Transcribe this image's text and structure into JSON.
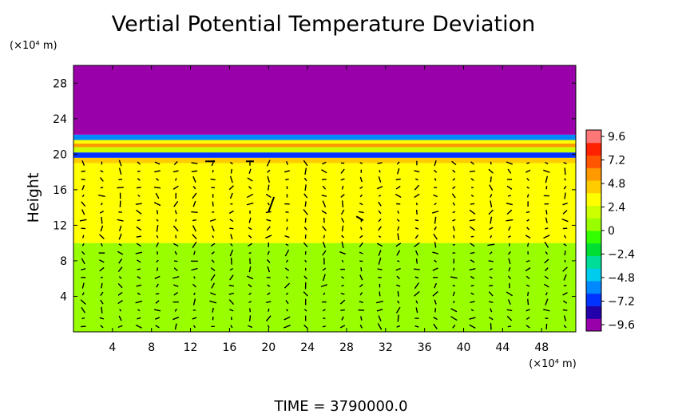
{
  "chart_data": {
    "type": "heatmap",
    "title": "Vertial Potential Temperature Deviation",
    "ylabel": "Height",
    "xlabel": "",
    "x_unit": "(×10⁴ m)",
    "y_unit": "(×10⁴ m)",
    "xlim": [
      0,
      51.5
    ],
    "ylim": [
      0,
      30
    ],
    "x_ticks": [
      4,
      8,
      12,
      16,
      20,
      24,
      28,
      32,
      36,
      40,
      44,
      48
    ],
    "y_ticks": [
      4,
      8,
      12,
      16,
      20,
      24,
      28
    ],
    "field_layers": [
      {
        "from": 0,
        "to": 10,
        "value": 0.5
      },
      {
        "from": 10,
        "to": 14,
        "value": 3.6
      },
      {
        "from": 14,
        "to": 19,
        "value": 2.8
      },
      {
        "from": 19,
        "to": 19.6,
        "value": 4.2
      },
      {
        "from": 19.6,
        "to": 20.2,
        "value": -7.0
      },
      {
        "from": 20.2,
        "to": 20.8,
        "value": 1.5
      },
      {
        "from": 20.8,
        "to": 21.2,
        "value": 6.5
      },
      {
        "from": 21.2,
        "to": 21.6,
        "value": 3.0
      },
      {
        "from": 21.6,
        "to": 22.2,
        "value": -5.5
      },
      {
        "from": 22.2,
        "to": 30,
        "value": -10.0
      }
    ],
    "colorbar": {
      "ticks": [
        "9.6",
        "7.2",
        "4.8",
        "2.4",
        "0",
        "−2.4",
        "−4.8",
        "−7.2",
        "−9.6"
      ],
      "min": -10.8,
      "max": 10.8,
      "colors": [
        "#9900aa",
        "#2200aa",
        "#0033ff",
        "#0088ff",
        "#00ccee",
        "#00dd99",
        "#00dd33",
        "#33ff00",
        "#99ff00",
        "#ccff00",
        "#ffff00",
        "#ffcc00",
        "#ff9900",
        "#ff5500",
        "#ff2200",
        "#ff7777"
      ]
    },
    "vectors": {
      "description_of_field": "wind vectors sampled on a regular grid",
      "max_length_units": 1.0
    }
  },
  "footer": {
    "time_text": "TIME  =  3790000.0"
  }
}
